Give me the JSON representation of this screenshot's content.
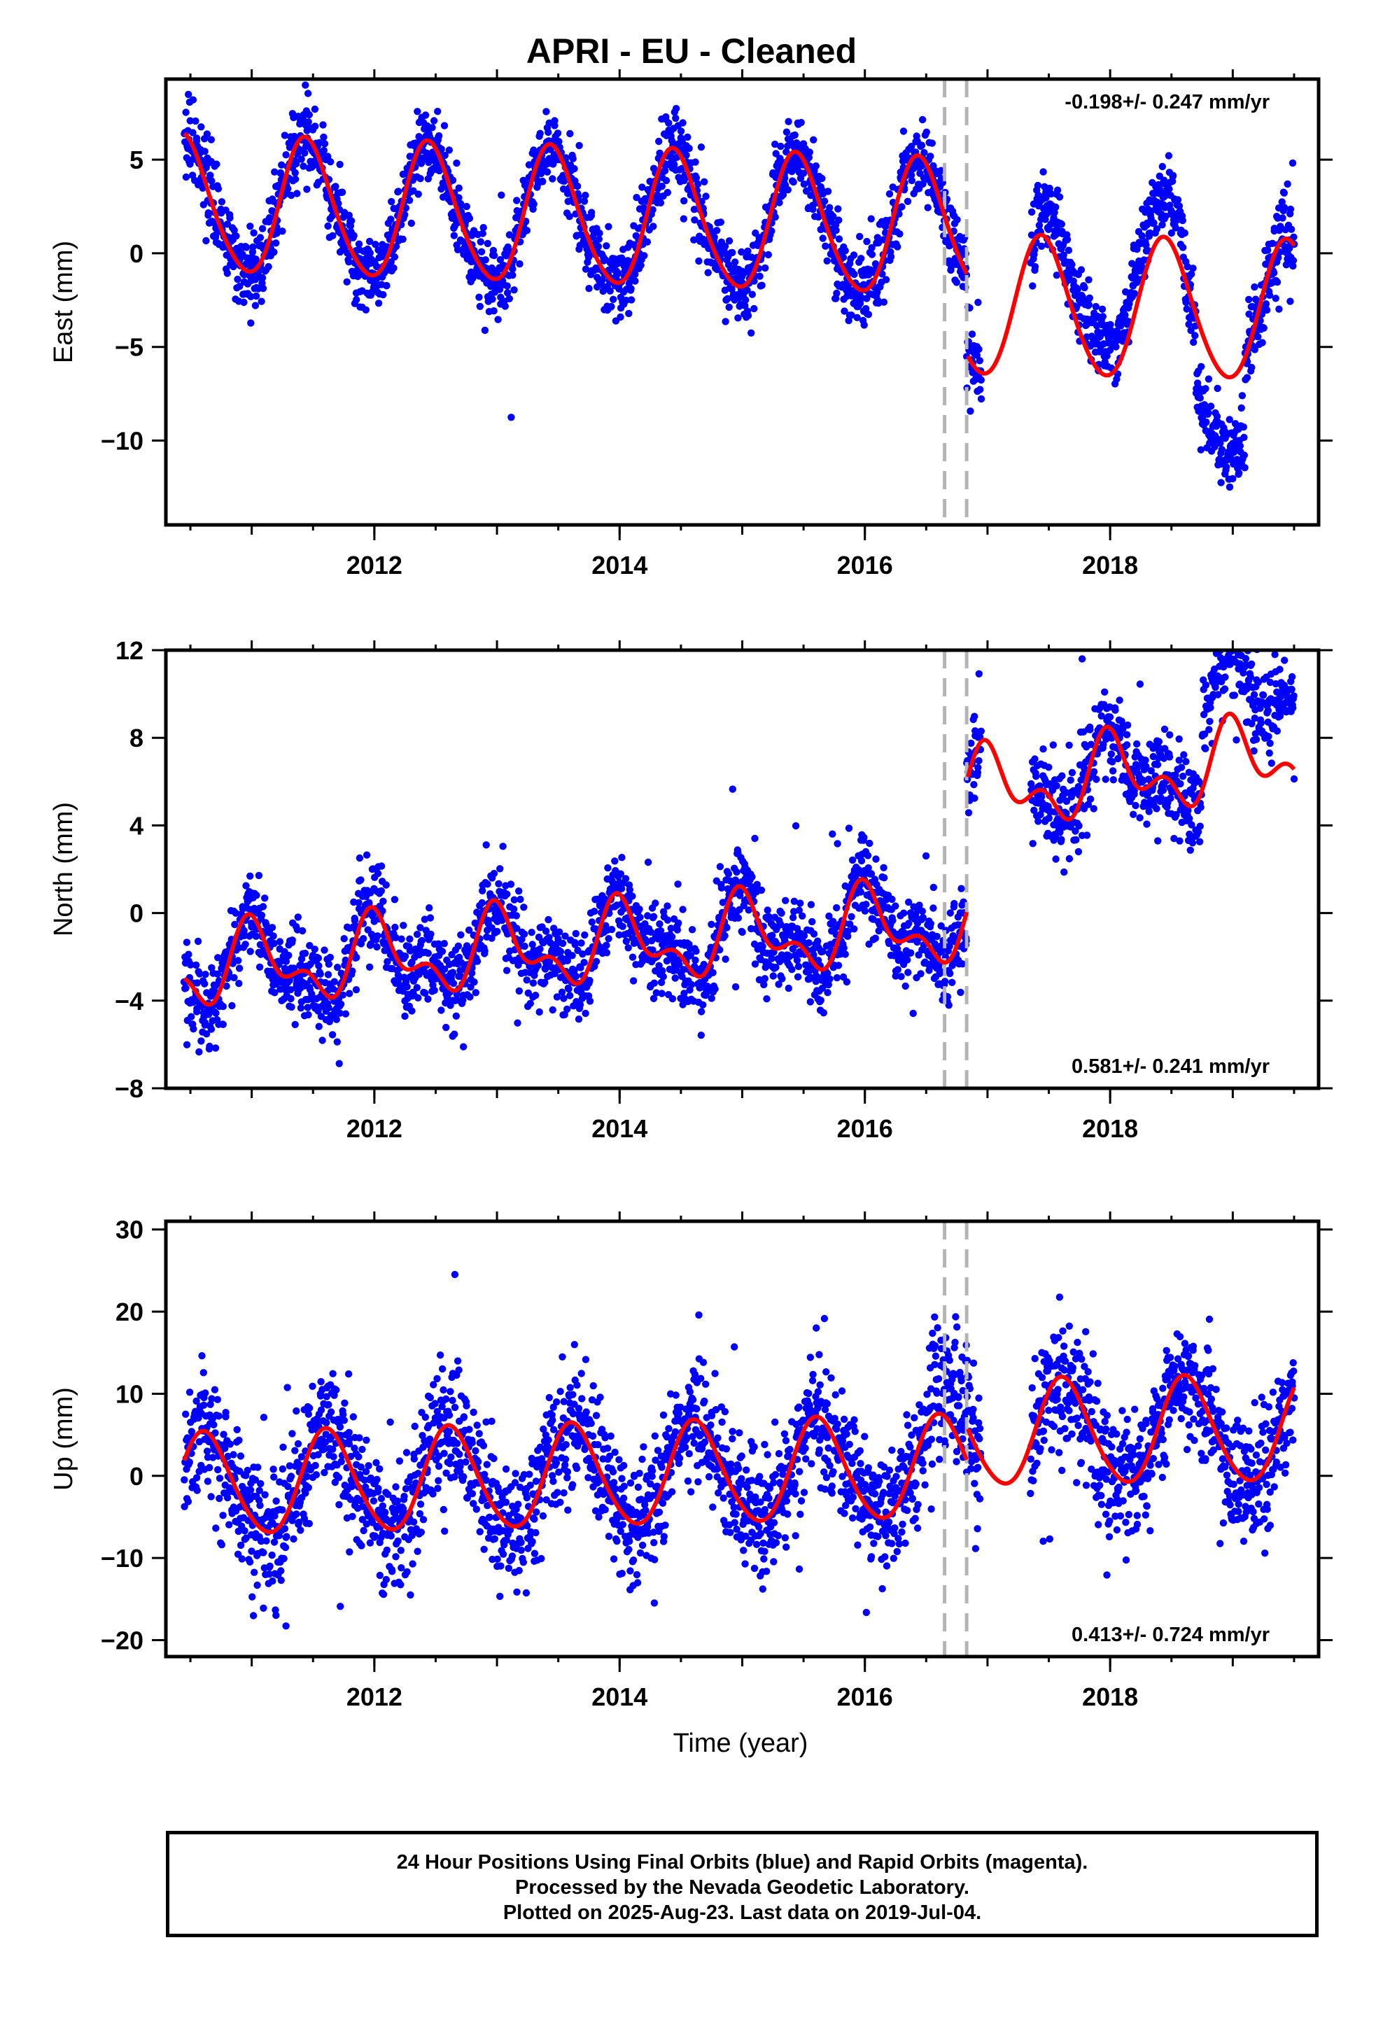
{
  "title": "APRI  - EU - Cleaned",
  "x_axis_label": "Time (year)",
  "footer": {
    "line1": "24 Hour Positions Using Final Orbits (blue) and Rapid Orbits (magenta).",
    "line2": "Processed by the Nevada Geodetic Laboratory.",
    "line3": "Plotted on 2025-Aug-23. Last data on 2019-Jul-04."
  },
  "colors": {
    "data_points": "#0000ff",
    "model_fit": "#ff0000",
    "offset_lines": "#b4b4b4",
    "frame": "#000000"
  },
  "chart_data": [
    {
      "type": "scatter",
      "name": "east",
      "ylabel": "East (mm)",
      "rate_text": "-0.198+/- 0.247 mm/yr",
      "rate_position": "top-right",
      "xlim": [
        2010.3,
        2019.7
      ],
      "ylim": [
        -14.5,
        9.3
      ],
      "xticks": [
        2012,
        2014,
        2016,
        2018
      ],
      "yticks": [
        -10,
        -5,
        0,
        5
      ],
      "offset_epochs": [
        2016.65,
        2016.83
      ],
      "model": {
        "mean_before": 1.8,
        "trend_before": -0.2,
        "amp_annual_before": 3.6,
        "amp_semiannual_before": 0.4,
        "mean_after": -2.6,
        "trend_after": -0.1,
        "amp_annual_after": 3.7,
        "amp_semiannual_after": 0.3,
        "peak_phase": 0.45
      },
      "scatter": {
        "start": 2010.45,
        "end": 2019.5,
        "count": 2900,
        "noise": 1.0,
        "gap": [
          2016.95,
          2017.35
        ],
        "drift_segments": [
          {
            "start": 2016.7,
            "end": 2016.85,
            "offset": 0
          },
          {
            "start": 2017.4,
            "end": 2018.2,
            "offset": 1.5
          },
          {
            "start": 2018.2,
            "end": 2018.6,
            "offset": 2.0
          },
          {
            "start": 2018.7,
            "end": 2019.1,
            "offset": -4.0
          },
          {
            "start": 2019.1,
            "end": 2019.5,
            "offset": 0.0
          }
        ]
      }
    },
    {
      "type": "scatter",
      "name": "north",
      "ylabel": "North (mm)",
      "rate_text": "0.581+/- 0.241 mm/yr",
      "rate_position": "bottom-right",
      "xlim": [
        2010.3,
        2019.7
      ],
      "ylim": [
        -8.0,
        12.0
      ],
      "xticks": [
        2012,
        2014,
        2016,
        2018
      ],
      "yticks": [
        -8,
        -4,
        0,
        4,
        8,
        12
      ],
      "offset_epochs": [
        2016.65,
        2016.83
      ],
      "model": {
        "mean_before": -1.4,
        "trend_before": 0.32,
        "amp_annual_before": 1.5,
        "amp_semiannual_before": 0.9,
        "mean_after": 3.8,
        "trend_after": 0.6,
        "amp_annual_after": 1.4,
        "amp_semiannual_after": 1.0,
        "peak_phase": 0.02
      },
      "scatter": {
        "start": 2010.45,
        "end": 2019.5,
        "count": 2700,
        "noise": 1.0,
        "gap": [
          2016.95,
          2017.35
        ],
        "drift_segments": [
          {
            "start": 2018.75,
            "end": 2019.5,
            "offset": 3.0
          }
        ]
      }
    },
    {
      "type": "scatter",
      "name": "up",
      "ylabel": "Up (mm)",
      "rate_text": "0.413+/- 0.724 mm/yr",
      "rate_position": "bottom-right",
      "xlim": [
        2010.3,
        2019.7
      ],
      "ylim": [
        -22.0,
        31.0
      ],
      "xticks": [
        2012,
        2014,
        2016,
        2018
      ],
      "yticks": [
        -20,
        -10,
        0,
        10,
        20,
        30
      ],
      "offset_epochs": [
        2016.65,
        2016.83
      ],
      "model": {
        "mean_before": 0.0,
        "trend_before": 0.35,
        "amp_annual_before": 6.2,
        "amp_semiannual_before": 0.6,
        "mean_after": 4.5,
        "trend_after": 0.2,
        "amp_annual_after": 6.4,
        "amp_semiannual_after": 0.6,
        "peak_phase": 0.62
      },
      "scatter": {
        "start": 2010.45,
        "end": 2019.5,
        "count": 2800,
        "noise": 3.8,
        "gap": [
          2016.95,
          2017.35
        ],
        "drift_segments": [
          {
            "start": 2016.55,
            "end": 2016.85,
            "offset": 5.0
          }
        ]
      }
    }
  ]
}
